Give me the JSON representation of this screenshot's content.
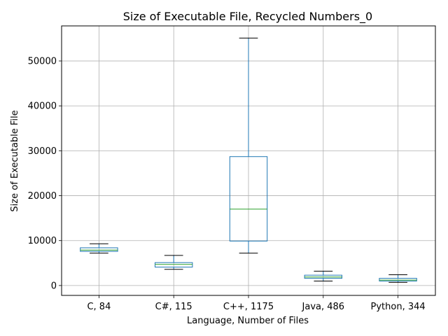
{
  "chart_data": {
    "type": "box",
    "title": "Size of Executable File, Recycled Numbers_0",
    "xlabel": "Language, Number of Files",
    "ylabel": "Size of Executable File",
    "ylim": [
      -2200,
      57800
    ],
    "yticks": [
      0,
      10000,
      20000,
      30000,
      40000,
      50000
    ],
    "grid": true,
    "categories": [
      "C, 84",
      "C#, 115",
      "C++, 1175",
      "Java, 486",
      "Python, 344"
    ],
    "boxes": [
      {
        "whisker_low": 7200,
        "q1": 7600,
        "median": 7900,
        "q3": 8400,
        "whisker_high": 9300
      },
      {
        "whisker_low": 3600,
        "q1": 4100,
        "median": 4700,
        "q3": 5100,
        "whisker_high": 6700
      },
      {
        "whisker_low": 7200,
        "q1": 9900,
        "median": 17000,
        "q3": 28700,
        "whisker_high": 55100
      },
      {
        "whisker_low": 1000,
        "q1": 1600,
        "median": 1900,
        "q3": 2300,
        "whisker_high": 3200
      },
      {
        "whisker_low": 700,
        "q1": 1000,
        "median": 1200,
        "q3": 1600,
        "whisker_high": 2400
      }
    ],
    "colors": {
      "box": "#1f77b4",
      "median": "#2ca02c",
      "cap": "#000000",
      "grid": "#b0b0b0"
    }
  }
}
